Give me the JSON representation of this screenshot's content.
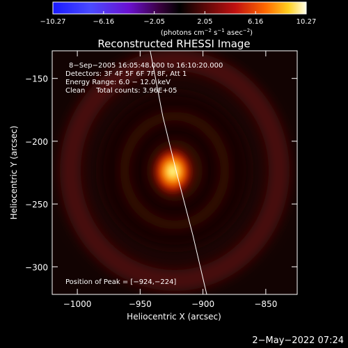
{
  "chart_data": {
    "type": "heatmap",
    "title": "Reconstructed RHESSI Image",
    "xlabel": "Heliocentric X (arcsec)",
    "ylabel": "Heliocentric Y (arcsec)",
    "xlim": [
      -1020,
      -825
    ],
    "ylim": [
      -322,
      -128
    ],
    "x_ticks": [
      {
        "value": -1000,
        "label": "−1000"
      },
      {
        "value": -950,
        "label": "−950"
      },
      {
        "value": -900,
        "label": "−900"
      },
      {
        "value": -850,
        "label": "−850"
      }
    ],
    "y_ticks": [
      {
        "value": -150,
        "label": "−150"
      },
      {
        "value": -200,
        "label": "−200"
      },
      {
        "value": -250,
        "label": "−250"
      },
      {
        "value": -300,
        "label": "−300"
      }
    ],
    "colorbar": {
      "range": [
        -10.27,
        10.27
      ],
      "ticks": [
        {
          "value": -10.27,
          "label": "−10.27"
        },
        {
          "value": -6.16,
          "label": "−6.16"
        },
        {
          "value": -2.05,
          "label": "−2.05"
        },
        {
          "value": 2.05,
          "label": "2.05"
        },
        {
          "value": 6.16,
          "label": "6.16"
        },
        {
          "value": 10.27,
          "label": "10.27"
        }
      ],
      "units_prefix": "(photons cm",
      "units_exp1": "−2",
      "units_mid": " s",
      "units_exp2": "−1",
      "units_mid2": " asec",
      "units_exp3": "−2",
      "units_suffix": ")"
    },
    "info_lines": [
      "8−Sep−2005 16:05:48.000 to 16:10:20.000",
      "Detectors: 3F 4F 5F 6F 7F 8F, Att 1",
      "Energy Range: 6.0 − 12.0 keV",
      "Clean     Total counts: 3.96E+05"
    ],
    "peak_label": "Position of Peak = [−924,−224]",
    "peak": {
      "x": -924,
      "y": -224
    },
    "limb_curve": [
      {
        "x": -942,
        "y": -128
      },
      {
        "x": -932,
        "y": -180
      },
      {
        "x": -921,
        "y": -225
      },
      {
        "x": -908,
        "y": -275
      },
      {
        "x": -897,
        "y": -322
      }
    ],
    "colors": {
      "background": "#000000",
      "limb_line": "#ffffff",
      "ring": "#5a1208",
      "peak_core": "#ffff80"
    }
  },
  "footer": {
    "date_stamp": "2−May−2022 07:24"
  }
}
